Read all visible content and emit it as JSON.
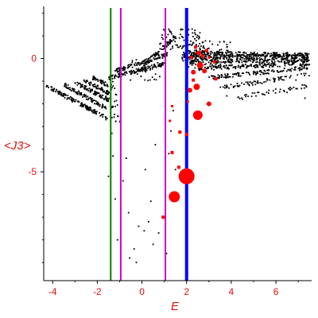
{
  "chart_data": {
    "type": "scatter",
    "title": "",
    "xlabel": "E",
    "ylabel": "<J3>",
    "xlim": [
      -4.4,
      7.6
    ],
    "ylim": [
      -9.8,
      2.3
    ],
    "x_ticks": [
      -4,
      -2,
      0,
      2,
      4,
      6
    ],
    "x_tick_labels": [
      "-4",
      "-2",
      "0",
      "2",
      "4",
      "6"
    ],
    "y_ticks": [
      0,
      -5
    ],
    "y_tick_labels": [
      "0",
      "-5"
    ],
    "grid": false,
    "legend": "none",
    "colors": {
      "axis_text": "#e01010",
      "points": "#000000",
      "highlight": "#ff0000",
      "green_line": "#008000",
      "magenta_line": "#cc00cc",
      "blue_line": "#0000ff"
    },
    "vertical_lines": [
      {
        "x": -1.4,
        "color": "#008000",
        "weight": 2
      },
      {
        "x": -0.95,
        "color": "#cc00cc",
        "weight": 2
      },
      {
        "x": 1.05,
        "color": "#cc00cc",
        "weight": 2
      },
      {
        "x": 2.0,
        "color": "#0000ff",
        "weight": 4
      }
    ],
    "highlighted_points": [
      {
        "x": 2.0,
        "y": -5.2,
        "size": 10
      },
      {
        "x": 1.45,
        "y": -6.1,
        "size": 7
      },
      {
        "x": 2.5,
        "y": -2.5,
        "size": 6
      },
      {
        "x": 2.45,
        "y": -1.25,
        "size": 4
      },
      {
        "x": 2.6,
        "y": -0.3,
        "size": 4
      },
      {
        "x": 2.3,
        "y": -0.6,
        "size": 3
      },
      {
        "x": 2.8,
        "y": -0.55,
        "size": 3
      },
      {
        "x": 3.0,
        "y": -2.0,
        "size": 3
      },
      {
        "x": 2.15,
        "y": -1.4,
        "size": 3
      },
      {
        "x": 2.55,
        "y": 0.25,
        "size": 3
      },
      {
        "x": 2.2,
        "y": 0.05,
        "size": 2
      },
      {
        "x": 2.9,
        "y": 0.35,
        "size": 2
      },
      {
        "x": 3.25,
        "y": -0.15,
        "size": 2
      },
      {
        "x": 2.3,
        "y": -0.95,
        "size": 2
      },
      {
        "x": 3.3,
        "y": -0.9,
        "size": 2
      },
      {
        "x": 1.35,
        "y": -4.15,
        "size": 2
      },
      {
        "x": 1.7,
        "y": -3.25,
        "size": 2
      },
      {
        "x": 1.65,
        "y": -4.8,
        "size": 2
      },
      {
        "x": 2.0,
        "y": -3.35,
        "size": 2
      },
      {
        "x": 1.25,
        "y": -2.75,
        "size": 1.5
      },
      {
        "x": 1.35,
        "y": -2.1,
        "size": 1.5
      },
      {
        "x": 0.95,
        "y": -7.0,
        "size": 2
      },
      {
        "x": 2.7,
        "y": 0.1,
        "size": 2
      },
      {
        "x": 2.4,
        "y": 0.5,
        "size": 2
      },
      {
        "x": 3.0,
        "y": 0.05,
        "size": 1.5
      },
      {
        "x": 2.05,
        "y": -1.9,
        "size": 1.5
      }
    ],
    "scatter_bands": [
      {
        "x0": -4.3,
        "x1": -1.55,
        "y0": -1.2,
        "y1": -2.65,
        "n": 130
      },
      {
        "x0": -3.5,
        "x1": -1.6,
        "y0": -1.15,
        "y1": -2.2,
        "n": 90
      },
      {
        "x0": -3.0,
        "x1": -1.45,
        "y0": -1.05,
        "y1": -1.85,
        "n": 80
      },
      {
        "x0": -2.6,
        "x1": -1.45,
        "y0": -0.95,
        "y1": -1.55,
        "n": 60
      },
      {
        "x0": -2.2,
        "x1": -1.45,
        "y0": -0.85,
        "y1": -1.2,
        "n": 40
      },
      {
        "x0": -1.5,
        "x1": 1.0,
        "y0": -0.85,
        "y1": -0.25,
        "n": 120
      },
      {
        "x0": -1.2,
        "x1": 1.2,
        "y0": -0.55,
        "y1": 0.2,
        "n": 110
      },
      {
        "x0": 0.0,
        "x1": 1.5,
        "y0": -0.35,
        "y1": 0.95,
        "n": 80
      },
      {
        "x0": 1.8,
        "x1": 7.5,
        "y0": 0.25,
        "y1": 0.15,
        "n": 200
      },
      {
        "x0": 1.8,
        "x1": 7.5,
        "y0": 0.05,
        "y1": 0.1,
        "n": 200
      },
      {
        "x0": 1.8,
        "x1": 7.5,
        "y0": -0.15,
        "y1": -0.05,
        "n": 200
      },
      {
        "x0": 2.5,
        "x1": 7.5,
        "y0": -0.45,
        "y1": -0.2,
        "n": 160
      },
      {
        "x0": 3.0,
        "x1": 7.5,
        "y0": -0.85,
        "y1": -0.4,
        "n": 120
      },
      {
        "x0": 3.5,
        "x1": 7.5,
        "y0": -1.3,
        "y1": -0.7,
        "n": 70
      },
      {
        "x0": 4.0,
        "x1": 7.5,
        "y0": -1.75,
        "y1": -1.2,
        "n": 40
      }
    ],
    "scatter_clouds": [
      {
        "x0": 0.8,
        "x1": 2.6,
        "y0": 0.4,
        "y1": 1.3,
        "n": 70
      },
      {
        "x0": -0.6,
        "x1": 0.8,
        "y0": -1.0,
        "y1": 0.0,
        "n": 30
      },
      {
        "x0": 2.0,
        "x1": 4.0,
        "y0": -0.5,
        "y1": 0.8,
        "n": 100
      },
      {
        "x0": -1.4,
        "x1": -0.95,
        "y0": -3.0,
        "y1": -0.9,
        "n": 25
      }
    ],
    "scatter_points": [
      [
        -1.35,
        -3.3
      ],
      [
        -1.3,
        -4.3
      ],
      [
        -1.2,
        -6.2
      ],
      [
        -1.1,
        -8.0
      ],
      [
        -0.95,
        -8.3
      ],
      [
        -0.85,
        -5.4
      ],
      [
        -0.7,
        -4.4
      ],
      [
        -0.6,
        -6.8
      ],
      [
        -0.55,
        -8.8
      ],
      [
        -0.35,
        -8.4
      ],
      [
        -0.25,
        -9.0
      ],
      [
        -0.15,
        -7.4
      ],
      [
        0.1,
        -7.6
      ],
      [
        0.15,
        -4.9
      ],
      [
        0.3,
        -7.2
      ],
      [
        0.4,
        -6.3
      ],
      [
        0.5,
        -8.2
      ],
      [
        0.75,
        -7.7
      ],
      [
        0.95,
        -7.0
      ],
      [
        1.2,
        -4.2
      ],
      [
        1.3,
        -3.2
      ],
      [
        1.4,
        -2.3
      ],
      [
        1.5,
        -4.9
      ],
      [
        -1.4,
        -2.4
      ],
      [
        -1.1,
        -2.05
      ],
      [
        0.6,
        -3.8
      ],
      [
        -1.5,
        -5.2
      ],
      [
        1.1,
        -8.6
      ],
      [
        4.5,
        -1.8
      ],
      [
        5.5,
        -1.6
      ],
      [
        6.5,
        -1.5
      ],
      [
        7.3,
        -1.75
      ],
      [
        3.8,
        -1.65
      ],
      [
        6.9,
        -0.95
      ]
    ]
  }
}
